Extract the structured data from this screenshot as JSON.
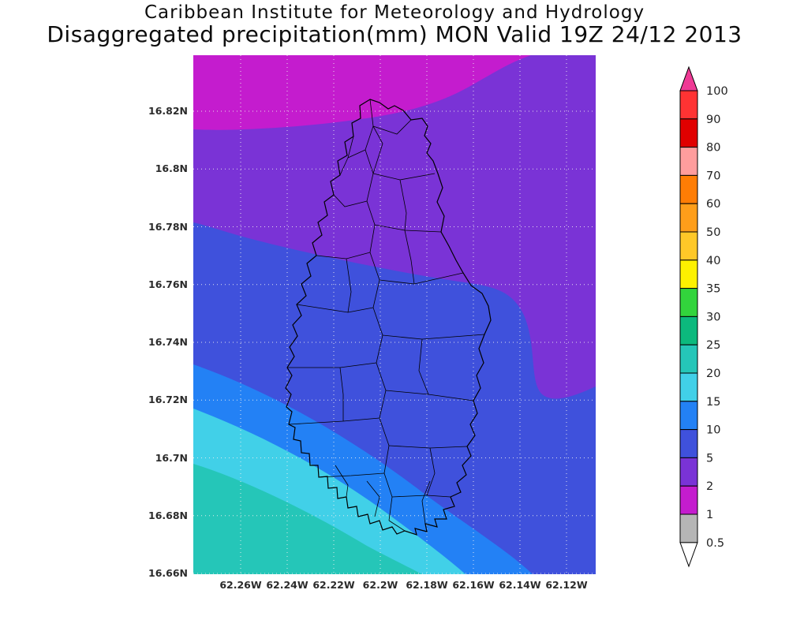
{
  "header": {
    "title": "Caribbean Institute for Meteorology and Hydrology",
    "subtitle": "Disaggregated precipitation(mm) MON Valid 19Z 24/12 2013"
  },
  "map": {
    "y_ticks": [
      "16.82N",
      "16.8N",
      "16.78N",
      "16.76N",
      "16.74N",
      "16.72N",
      "16.7N",
      "16.68N",
      "16.66N"
    ],
    "x_ticks": [
      "62.26W",
      "62.24W",
      "62.22W",
      "62.2W",
      "62.18W",
      "62.16W",
      "62.14W",
      "62.12W"
    ],
    "grid_style": "dotted",
    "level_fills": {
      "1-2": "#c41cce",
      "2-5": "#7a33d6",
      "5-10": "#3f51dc",
      "10-15": "#2381f5",
      "15-20": "#41d0e8",
      "20-25": "#25c6b8"
    }
  },
  "colorbar": {
    "labels": [
      "100",
      "90",
      "80",
      "70",
      "60",
      "50",
      "40",
      "35",
      "30",
      "25",
      "20",
      "15",
      "10",
      "5",
      "2",
      "1",
      "0.5"
    ],
    "colors": [
      "#ff3333",
      "#e00000",
      "#ff9d9d",
      "#ff7d05",
      "#ff9e1a",
      "#ffc828",
      "#fdf100",
      "#32d43c",
      "#0cb97d",
      "#25c6b8",
      "#41d0e8",
      "#2381f5",
      "#3f51dc",
      "#7a33d6",
      "#c41cce",
      "#b5b5b5"
    ],
    "arrow_top_color": "#ef3a95",
    "arrow_bottom_color": "#ffffff"
  },
  "chart_data": {
    "type": "heatmap",
    "subtype": "filled contour precipitation map (GrADS style)",
    "title": "Caribbean Institute for Meteorology and Hydrology",
    "subtitle": "Disaggregated precipitation(mm) MON Valid 19Z 24/12 2013",
    "variable": "Disaggregated precipitation",
    "units": "mm",
    "area_label": "MON (Montserrat)",
    "valid_time": "19Z 24/12 2013",
    "x_axis": {
      "direction": "longitude (degrees West)",
      "ticks": [
        "62.26W",
        "62.24W",
        "62.22W",
        "62.2W",
        "62.18W",
        "62.16W",
        "62.14W",
        "62.12W"
      ]
    },
    "y_axis": {
      "direction": "latitude (degrees North)",
      "ticks": [
        "16.82N",
        "16.8N",
        "16.78N",
        "16.76N",
        "16.74N",
        "16.72N",
        "16.7N",
        "16.68N",
        "16.66N"
      ]
    },
    "contour_levels": [
      0.5,
      1,
      2,
      5,
      10,
      15,
      20,
      25,
      30,
      35,
      40,
      50,
      60,
      70,
      80,
      90,
      100
    ],
    "legend_position": "right",
    "grid": "dotted",
    "field_regions": [
      {
        "value_range_mm": "1-2",
        "location": "northwest corner and band along the top edge"
      },
      {
        "value_range_mm": "2-5",
        "location": "broad region across the north with a large lobe extending down the eastern side"
      },
      {
        "value_range_mm": "5-10",
        "location": "dominant field over center, west and southeast"
      },
      {
        "value_range_mm": "10-15",
        "location": "diagonal band toward the southwest"
      },
      {
        "value_range_mm": "15-20",
        "location": "band near the southwest corner"
      },
      {
        "value_range_mm": "20-25",
        "location": "far southwest corner"
      }
    ],
    "overlay": "Montserrat island coastline with watershed/catchment boundaries in black"
  }
}
